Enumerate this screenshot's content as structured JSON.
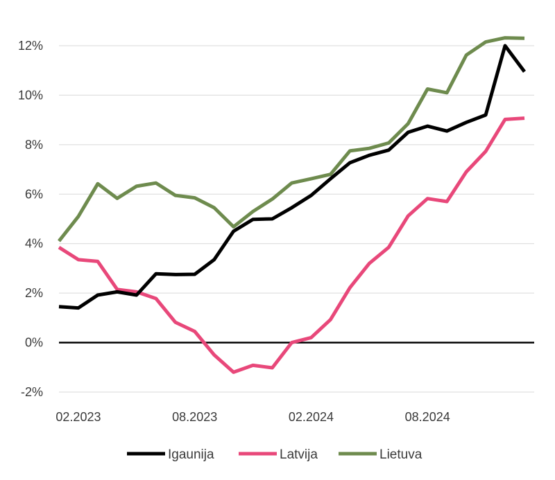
{
  "chart_data": {
    "type": "line",
    "title": "",
    "xlabel": "",
    "ylabel": "",
    "ylim": [
      -2,
      12
    ],
    "y_ticks": [
      -2,
      0,
      2,
      4,
      6,
      8,
      10,
      12
    ],
    "y_tick_format": "%",
    "x_tick_labels": [
      "02.2023",
      "08.2023",
      "02.2024",
      "08.2024"
    ],
    "x": [
      "01.2023",
      "02.2023",
      "03.2023",
      "04.2023",
      "05.2023",
      "06.2023",
      "07.2023",
      "08.2023",
      "09.2023",
      "10.2023",
      "11.2023",
      "12.2023",
      "01.2024",
      "02.2024",
      "03.2024",
      "04.2024",
      "05.2024",
      "06.2024",
      "07.2024",
      "08.2024",
      "09.2024",
      "10.2024",
      "11.2024",
      "12.2024",
      "01.2025"
    ],
    "grid": "horizontal",
    "legend": "bottom",
    "series": [
      {
        "name": "Igaunija",
        "color": "#000000",
        "values": [
          1.45,
          1.4,
          1.92,
          2.05,
          1.92,
          2.78,
          2.75,
          2.76,
          3.35,
          4.5,
          4.98,
          5.0,
          5.45,
          5.95,
          6.62,
          7.27,
          7.57,
          7.78,
          8.5,
          8.75,
          8.55,
          8.9,
          9.2,
          12.0,
          10.95
        ]
      },
      {
        "name": "Latvija",
        "color": "#e8487a",
        "values": [
          3.85,
          3.35,
          3.28,
          2.15,
          2.05,
          1.78,
          0.82,
          0.45,
          -0.5,
          -1.2,
          -0.92,
          -1.02,
          0.0,
          0.2,
          0.93,
          2.22,
          3.2,
          3.85,
          5.12,
          5.82,
          5.7,
          6.9,
          7.73,
          9.02,
          9.07
        ]
      },
      {
        "name": "Lietuva",
        "color": "#6e8b4e",
        "values": [
          4.1,
          5.1,
          6.42,
          5.83,
          6.32,
          6.45,
          5.95,
          5.85,
          5.45,
          4.68,
          5.3,
          5.8,
          6.45,
          6.62,
          6.8,
          7.75,
          7.85,
          8.07,
          8.85,
          10.25,
          10.1,
          11.62,
          12.15,
          12.32,
          12.3
        ]
      }
    ]
  }
}
